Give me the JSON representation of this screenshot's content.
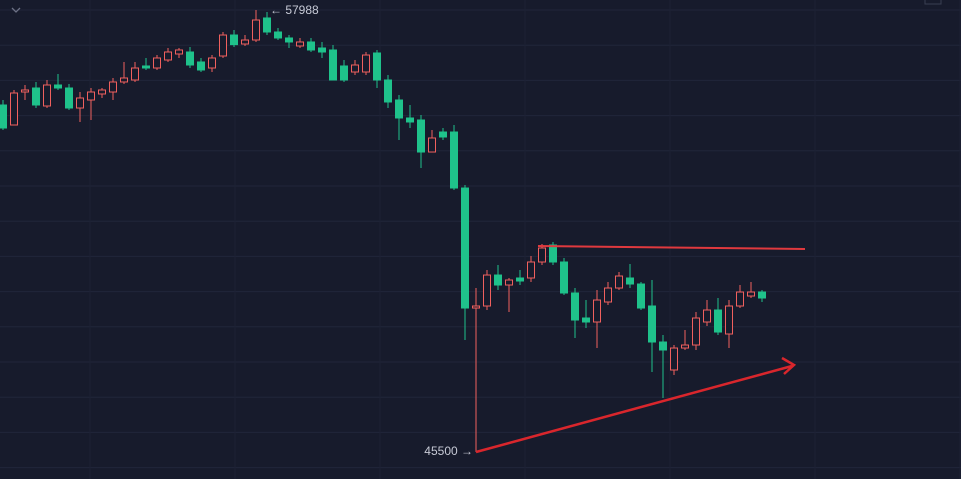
{
  "chart_data": {
    "type": "candlestick",
    "categories": [
      null,
      null,
      null,
      null,
      null,
      null,
      null,
      null,
      null,
      null,
      null,
      null,
      null,
      null,
      null,
      null,
      null,
      null,
      null,
      null,
      null,
      null,
      null,
      null,
      null,
      null,
      null,
      null,
      null,
      null,
      null,
      null,
      null,
      null,
      null,
      null,
      null,
      null,
      null,
      null,
      null,
      null,
      null,
      null,
      null,
      null,
      null,
      null,
      null,
      null,
      null,
      null,
      null,
      null,
      null,
      null,
      null,
      null,
      null,
      null,
      null,
      null,
      null,
      null,
      null,
      null,
      null,
      null,
      null,
      null
    ],
    "open": [
      55304,
      54739,
      55671,
      55784,
      55276,
      55869,
      55784,
      55219,
      55445,
      55615,
      55671,
      55954,
      56010,
      56406,
      56349,
      56575,
      56745,
      56801,
      56519,
      56349,
      56688,
      57281,
      57027,
      57140,
      57762,
      57366,
      57197,
      56971,
      57084,
      56914,
      56858,
      56406,
      56236,
      56236,
      56773,
      56010,
      55445,
      54937,
      54880,
      53976,
      54541,
      54541,
      52959,
      49569,
      49626,
      50501,
      50219,
      50417,
      50417,
      50869,
      51349,
      50869,
      49993,
      49287,
      49174,
      49739,
      50134,
      50417,
      50247,
      49626,
      48609,
      47818,
      48439,
      48524,
      49174,
      49513,
      48835,
      49626,
      49908,
      50021
    ],
    "high": [
      55445,
      55728,
      55869,
      55954,
      56010,
      56180,
      55897,
      55671,
      55784,
      55784,
      56067,
      56519,
      56519,
      56632,
      56716,
      56914,
      56914,
      56942,
      56632,
      56716,
      57366,
      57423,
      57281,
      57988,
      57931,
      57479,
      57281,
      57197,
      57197,
      57084,
      56999,
      56575,
      56575,
      56801,
      56858,
      56151,
      55586,
      55304,
      55021,
      54598,
      54654,
      54739,
      53044,
      50134,
      50643,
      50784,
      50417,
      50643,
      51038,
      51377,
      51434,
      50982,
      50134,
      49795,
      50078,
      50304,
      50586,
      50812,
      50304,
      50360,
      48806,
      48524,
      48947,
      49456,
      49795,
      49852,
      49795,
      50219,
      50304,
      50078
    ],
    "low": [
      54598,
      54739,
      55445,
      55219,
      55219,
      55728,
      55163,
      54824,
      54880,
      55502,
      55445,
      55897,
      55954,
      56293,
      56293,
      56519,
      56632,
      56349,
      56236,
      56236,
      56632,
      56942,
      56971,
      57084,
      57281,
      57140,
      56914,
      56914,
      56801,
      56632,
      56010,
      55954,
      56151,
      56151,
      55784,
      55219,
      54315,
      54654,
      53524,
      53976,
      54315,
      52903,
      48665,
      45500,
      49513,
      50078,
      49456,
      50219,
      50304,
      50784,
      50784,
      49936,
      48722,
      49004,
      48439,
      49654,
      50078,
      50134,
      49513,
      47761,
      47027,
      47677,
      48383,
      48383,
      49061,
      48806,
      48439,
      49569,
      49852,
      49739
    ],
    "close": [
      54654,
      55643,
      55728,
      55304,
      55869,
      55784,
      55219,
      55502,
      55671,
      55728,
      55954,
      56067,
      56349,
      56349,
      56632,
      56801,
      56858,
      56434,
      56293,
      56632,
      57281,
      57009,
      57140,
      57705,
      57366,
      57197,
      57084,
      57084,
      56858,
      56801,
      56010,
      56010,
      56434,
      56716,
      56010,
      55389,
      54937,
      54824,
      53976,
      54372,
      54400,
      52959,
      49569,
      49626,
      50501,
      50219,
      50360,
      50332,
      50869,
      51264,
      50869,
      49993,
      49230,
      49174,
      49795,
      50134,
      50473,
      50247,
      49569,
      48609,
      48383,
      48439,
      48524,
      49287,
      49513,
      48891,
      49626,
      50021,
      50021,
      49852
    ],
    "ylim": [
      44739,
      58270
    ],
    "up_color": "#f0605e",
    "down_color": "#1fc28b",
    "grid": true,
    "annotations": [
      {
        "label": "← 57988"
      },
      {
        "label": "45500 →"
      }
    ]
  }
}
